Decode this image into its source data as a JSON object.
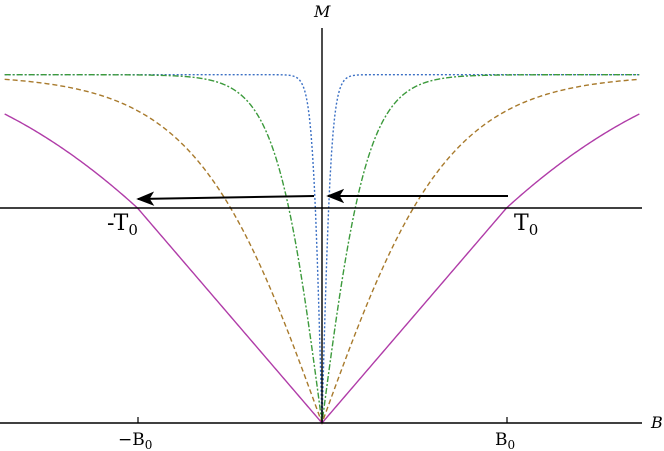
{
  "chart_data": {
    "type": "line",
    "axis_labels": {
      "x": "B",
      "y": "M"
    },
    "tick_labels": [
      {
        "x": -1,
        "text": "−B",
        "sub": "0"
      },
      {
        "x": 1,
        "text": "B",
        "sub": "0"
      }
    ],
    "annotations": [
      {
        "text": "-T",
        "sub": "0",
        "x": -1,
        "y": 0
      },
      {
        "text": "T",
        "sub": "0",
        "x": 1,
        "y": 0
      }
    ],
    "arrows": [
      {
        "from": [
          1,
          0.05
        ],
        "to": [
          0.05,
          0.05
        ]
      },
      {
        "from": [
          -0.05,
          0.05
        ],
        "to": [
          -1,
          0.03
        ]
      }
    ],
    "x_range": [
      -1.72,
      1.72
    ],
    "y_range": [
      -1.0,
      0.8
    ],
    "horizontal_line_y": 0,
    "series": [
      {
        "color": "#3a6fc4",
        "dash": "2,2",
        "k": 0.04,
        "form": "saturating",
        "x": [
          0,
          0.02,
          0.05,
          0.1,
          0.15,
          0.2,
          0.3,
          0.4,
          0.6,
          0.8,
          1.0,
          1.4,
          1.72
        ],
        "y": [
          -1.0,
          -0.5,
          0.06,
          0.43,
          0.55,
          0.6,
          0.62,
          0.62,
          0.62,
          0.62,
          0.62,
          0.62,
          0.62
        ]
      },
      {
        "color": "#3c9a3c",
        "dash": "6,2,2,2",
        "k": 0.2,
        "form": "saturating",
        "x": [
          0,
          0.1,
          0.2,
          0.3,
          0.4,
          0.5,
          0.6,
          0.8,
          1.0,
          1.2,
          1.4,
          1.72
        ],
        "y": [
          -1.0,
          -0.54,
          -0.16,
          0.11,
          0.29,
          0.4,
          0.48,
          0.56,
          0.59,
          0.61,
          0.62,
          0.62
        ]
      },
      {
        "color": "#a87a2c",
        "dash": "5,3",
        "k": 0.55,
        "form": "saturating",
        "x": [
          0,
          0.2,
          0.4,
          0.6,
          0.8,
          1.0,
          1.2,
          1.4,
          1.6,
          1.72
        ],
        "y": [
          -1.0,
          -0.66,
          -0.35,
          -0.09,
          0.11,
          0.27,
          0.38,
          0.46,
          0.51,
          0.55
        ]
      },
      {
        "color": "#b03ca8",
        "dash": "",
        "k": 1.0,
        "form": "smooth",
        "x": [
          0,
          0.2,
          0.4,
          0.6,
          0.8,
          1.0,
          1.2,
          1.4,
          1.6,
          1.72
        ],
        "y": [
          -1.0,
          -0.8,
          -0.6,
          -0.4,
          -0.2,
          0.0,
          0.13,
          0.24,
          0.34,
          0.39
        ]
      }
    ]
  }
}
